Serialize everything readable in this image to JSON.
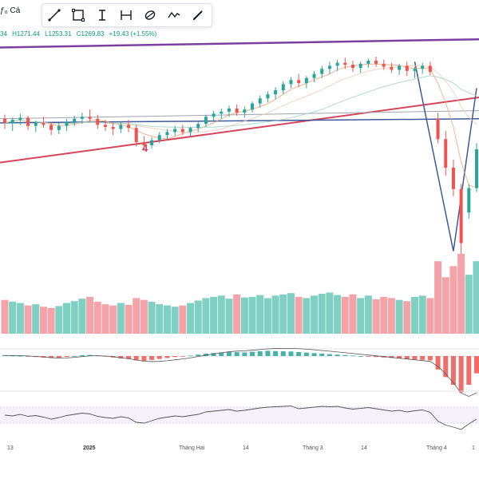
{
  "header": {
    "symbol_fragment": "ƒ₀ Cá",
    "ohlc": {
      "open_fragment": "34",
      "high": "H1271.44",
      "low": "L1253.31",
      "close": "C1269.83",
      "change": "+19.43 (+1.55%)"
    }
  },
  "toolbar": {
    "tools": [
      {
        "name": "trend-line-tool",
        "icon": "line-icon"
      },
      {
        "name": "rectangle-tool",
        "icon": "rectangle-icon"
      },
      {
        "name": "text-tool",
        "icon": "text-cursor-icon"
      },
      {
        "name": "fib-tool",
        "icon": "fib-icon"
      },
      {
        "name": "brush-tool",
        "icon": "brush-icon"
      },
      {
        "name": "path-tool",
        "icon": "path-icon"
      },
      {
        "name": "pen-tool",
        "icon": "pen-icon"
      }
    ]
  },
  "annotations": {
    "wave_label": "4"
  },
  "x_axis": {
    "labels": [
      {
        "text": "13",
        "bold": false
      },
      {
        "text": "2025",
        "bold": true
      },
      {
        "text": "Tháng Hai",
        "bold": false
      },
      {
        "text": "14",
        "bold": false
      },
      {
        "text": "Tháng 3",
        "bold": false
      },
      {
        "text": "14",
        "bold": false
      },
      {
        "text": "Tháng 4",
        "bold": false
      },
      {
        "text": "1",
        "bold": false
      }
    ]
  },
  "colors": {
    "up": "#26a69a",
    "down": "#ef5350",
    "up_volume": "#7fcfc2",
    "down_volume": "#f4a3a8",
    "channel_top": "#7b3fa0",
    "channel_bottom": "#d6445b",
    "trend_blue": "#3d5a99",
    "ma_light": "#f2c8b2"
  },
  "chart_data": {
    "type": "candlestick",
    "candles": [
      {
        "o": 1262,
        "h": 1266,
        "l": 1252,
        "c": 1258
      },
      {
        "o": 1258,
        "h": 1263,
        "l": 1250,
        "c": 1261
      },
      {
        "o": 1261,
        "h": 1267,
        "l": 1256,
        "c": 1263
      },
      {
        "o": 1263,
        "h": 1265,
        "l": 1251,
        "c": 1255
      },
      {
        "o": 1255,
        "h": 1260,
        "l": 1249,
        "c": 1258
      },
      {
        "o": 1258,
        "h": 1264,
        "l": 1253,
        "c": 1256
      },
      {
        "o": 1256,
        "h": 1259,
        "l": 1246,
        "c": 1251
      },
      {
        "o": 1251,
        "h": 1258,
        "l": 1247,
        "c": 1255
      },
      {
        "o": 1255,
        "h": 1262,
        "l": 1250,
        "c": 1259
      },
      {
        "o": 1259,
        "h": 1265,
        "l": 1255,
        "c": 1262
      },
      {
        "o": 1262,
        "h": 1268,
        "l": 1257,
        "c": 1264
      },
      {
        "o": 1264,
        "h": 1271,
        "l": 1259,
        "c": 1262
      },
      {
        "o": 1262,
        "h": 1266,
        "l": 1252,
        "c": 1256
      },
      {
        "o": 1256,
        "h": 1261,
        "l": 1250,
        "c": 1254
      },
      {
        "o": 1254,
        "h": 1258,
        "l": 1246,
        "c": 1252
      },
      {
        "o": 1252,
        "h": 1259,
        "l": 1248,
        "c": 1256
      },
      {
        "o": 1256,
        "h": 1261,
        "l": 1249,
        "c": 1253
      },
      {
        "o": 1253,
        "h": 1256,
        "l": 1235,
        "c": 1239
      },
      {
        "o": 1239,
        "h": 1245,
        "l": 1232,
        "c": 1236
      },
      {
        "o": 1236,
        "h": 1244,
        "l": 1233,
        "c": 1241
      },
      {
        "o": 1241,
        "h": 1249,
        "l": 1238,
        "c": 1246
      },
      {
        "o": 1246,
        "h": 1252,
        "l": 1241,
        "c": 1249
      },
      {
        "o": 1249,
        "h": 1255,
        "l": 1245,
        "c": 1252
      },
      {
        "o": 1252,
        "h": 1256,
        "l": 1246,
        "c": 1249
      },
      {
        "o": 1249,
        "h": 1254,
        "l": 1245,
        "c": 1253
      },
      {
        "o": 1253,
        "h": 1259,
        "l": 1249,
        "c": 1257
      },
      {
        "o": 1257,
        "h": 1266,
        "l": 1254,
        "c": 1264
      },
      {
        "o": 1264,
        "h": 1270,
        "l": 1259,
        "c": 1267
      },
      {
        "o": 1267,
        "h": 1272,
        "l": 1262,
        "c": 1269
      },
      {
        "o": 1269,
        "h": 1275,
        "l": 1264,
        "c": 1272
      },
      {
        "o": 1272,
        "h": 1276,
        "l": 1265,
        "c": 1268
      },
      {
        "o": 1268,
        "h": 1274,
        "l": 1263,
        "c": 1271
      },
      {
        "o": 1271,
        "h": 1279,
        "l": 1268,
        "c": 1277
      },
      {
        "o": 1277,
        "h": 1285,
        "l": 1273,
        "c": 1282
      },
      {
        "o": 1282,
        "h": 1289,
        "l": 1278,
        "c": 1286
      },
      {
        "o": 1286,
        "h": 1293,
        "l": 1281,
        "c": 1290
      },
      {
        "o": 1290,
        "h": 1299,
        "l": 1286,
        "c": 1296
      },
      {
        "o": 1296,
        "h": 1303,
        "l": 1292,
        "c": 1300
      },
      {
        "o": 1300,
        "h": 1306,
        "l": 1293,
        "c": 1297
      },
      {
        "o": 1297,
        "h": 1304,
        "l": 1292,
        "c": 1302
      },
      {
        "o": 1302,
        "h": 1309,
        "l": 1298,
        "c": 1306
      },
      {
        "o": 1306,
        "h": 1314,
        "l": 1302,
        "c": 1311
      },
      {
        "o": 1311,
        "h": 1318,
        "l": 1306,
        "c": 1314
      },
      {
        "o": 1314,
        "h": 1320,
        "l": 1309,
        "c": 1317
      },
      {
        "o": 1317,
        "h": 1322,
        "l": 1311,
        "c": 1315
      },
      {
        "o": 1315,
        "h": 1319,
        "l": 1308,
        "c": 1312
      },
      {
        "o": 1312,
        "h": 1318,
        "l": 1307,
        "c": 1316
      },
      {
        "o": 1316,
        "h": 1321,
        "l": 1312,
        "c": 1319
      },
      {
        "o": 1319,
        "h": 1323,
        "l": 1313,
        "c": 1316
      },
      {
        "o": 1316,
        "h": 1320,
        "l": 1310,
        "c": 1313
      },
      {
        "o": 1313,
        "h": 1317,
        "l": 1307,
        "c": 1310
      },
      {
        "o": 1310,
        "h": 1316,
        "l": 1305,
        "c": 1314
      },
      {
        "o": 1314,
        "h": 1318,
        "l": 1304,
        "c": 1309
      },
      {
        "o": 1309,
        "h": 1313,
        "l": 1302,
        "c": 1311
      },
      {
        "o": 1311,
        "h": 1317,
        "l": 1306,
        "c": 1314
      },
      {
        "o": 1314,
        "h": 1318,
        "l": 1305,
        "c": 1308
      },
      {
        "o": 1262,
        "h": 1268,
        "l": 1238,
        "c": 1242
      },
      {
        "o": 1242,
        "h": 1250,
        "l": 1206,
        "c": 1214
      },
      {
        "o": 1214,
        "h": 1222,
        "l": 1186,
        "c": 1193
      },
      {
        "o": 1193,
        "h": 1198,
        "l": 1128,
        "c": 1140
      },
      {
        "o": 1170,
        "h": 1198,
        "l": 1164,
        "c": 1194
      },
      {
        "o": 1194,
        "h": 1238,
        "l": 1190,
        "c": 1232
      }
    ],
    "volumes": [
      55,
      52,
      50,
      46,
      48,
      44,
      42,
      45,
      50,
      53,
      57,
      60,
      52,
      48,
      46,
      50,
      47,
      58,
      55,
      52,
      48,
      46,
      44,
      46,
      50,
      54,
      58,
      60,
      62,
      57,
      64,
      59,
      60,
      63,
      58,
      62,
      64,
      66,
      60,
      58,
      62,
      65,
      67,
      63,
      60,
      64,
      58,
      62,
      56,
      60,
      58,
      55,
      53,
      60,
      62,
      58,
      118,
      92,
      110,
      130,
      96,
      118
    ],
    "volume_up": [
      0,
      1,
      1,
      0,
      1,
      0,
      0,
      1,
      1,
      1,
      1,
      0,
      0,
      0,
      0,
      1,
      0,
      0,
      0,
      1,
      1,
      1,
      1,
      0,
      1,
      1,
      1,
      1,
      1,
      1,
      0,
      1,
      1,
      1,
      1,
      1,
      1,
      1,
      0,
      1,
      1,
      1,
      1,
      1,
      0,
      0,
      1,
      1,
      0,
      0,
      0,
      1,
      0,
      1,
      1,
      0,
      0,
      0,
      0,
      0,
      1,
      1
    ],
    "macd_hist": [
      1,
      0.5,
      0.2,
      -0.5,
      -1,
      -1.5,
      -2,
      -1.8,
      -1,
      0,
      0.8,
      1.2,
      0.5,
      -0.5,
      -1.5,
      -2.5,
      -3,
      -4.5,
      -5,
      -4,
      -3,
      -2,
      -1,
      -0.5,
      0.5,
      1.5,
      2.5,
      3.2,
      3.8,
      4.2,
      4,
      3.8,
      4.5,
      5,
      5.5,
      5.2,
      5,
      4.8,
      4.2,
      3.6,
      3,
      2.5,
      2,
      1.5,
      1,
      0.5,
      0,
      -0.5,
      -1,
      -1.5,
      -2,
      -2.5,
      -3,
      -3.5,
      -4,
      -4.5,
      -14,
      -22,
      -30,
      -38,
      -30,
      -18
    ],
    "rsi": [
      50,
      48,
      52,
      47,
      49,
      45,
      40,
      44,
      49,
      52,
      55,
      53,
      47,
      44,
      42,
      46,
      43,
      32,
      30,
      36,
      42,
      45,
      48,
      46,
      49,
      52,
      58,
      60,
      62,
      64,
      60,
      62,
      65,
      68,
      70,
      71,
      72,
      73,
      66,
      68,
      70,
      72,
      71,
      72,
      68,
      65,
      67,
      69,
      66,
      63,
      60,
      62,
      58,
      61,
      63,
      57,
      35,
      25,
      20,
      14,
      28,
      40
    ]
  }
}
